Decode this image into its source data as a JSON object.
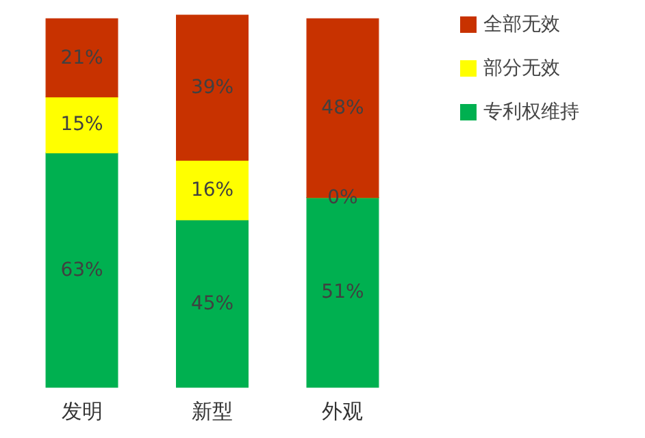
{
  "chart_data": {
    "type": "bar",
    "stacked": true,
    "categories": [
      "发明",
      "新型",
      "外观"
    ],
    "series": [
      {
        "name": "专利权维持",
        "color": "#00b050",
        "values": [
          63,
          45,
          51
        ],
        "value_labels": [
          "63%",
          "45%",
          "51%"
        ]
      },
      {
        "name": "部分无效",
        "color": "#ffff00",
        "values": [
          15,
          16,
          0
        ],
        "value_labels": [
          "15%",
          "16%",
          "0%"
        ]
      },
      {
        "name": "全部无效",
        "color": "#c83200",
        "values": [
          21,
          39,
          48
        ],
        "value_labels": [
          "21%",
          "39%",
          "48%"
        ]
      }
    ],
    "legend": "right"
  }
}
